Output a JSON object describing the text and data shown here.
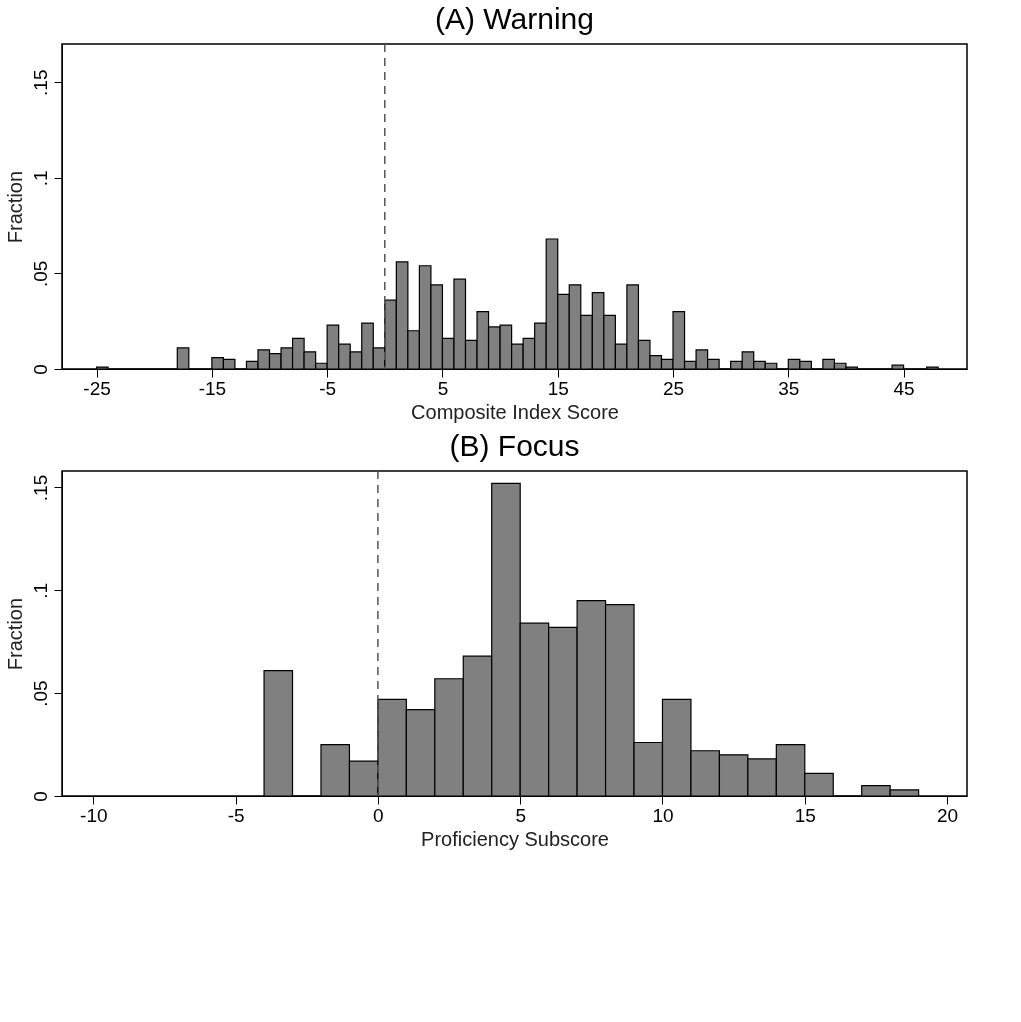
{
  "chart_data": [
    {
      "type": "histogram",
      "title": "(A) Warning",
      "xlabel": "Composite Index Score",
      "ylabel": "Fraction",
      "color": "#808080",
      "bins": [
        -25,
        -24,
        -23,
        -22,
        -21,
        -20,
        -19,
        -18,
        -17,
        -16,
        -15,
        -14,
        -13,
        -12,
        -11,
        -10,
        -9,
        -8,
        -7,
        -6,
        -5,
        -4,
        -3,
        -2,
        -1,
        0,
        1,
        2,
        3,
        4,
        5,
        6,
        7,
        8,
        9,
        10,
        11,
        12,
        13,
        14,
        15,
        16,
        17,
        18,
        19,
        20,
        21,
        22,
        23,
        24,
        25,
        26,
        27,
        28,
        29,
        30,
        31,
        32,
        33,
        34,
        35,
        36,
        37,
        38,
        39,
        40,
        41,
        42,
        43,
        44,
        45,
        46,
        47,
        48
      ],
      "values": [
        0.001,
        0,
        0,
        0,
        0,
        0,
        0,
        0.011,
        0,
        0,
        0.006,
        0.005,
        0,
        0.004,
        0.01,
        0.008,
        0.011,
        0.016,
        0.009,
        0.003,
        0.023,
        0.013,
        0.009,
        0.024,
        0.011,
        0.036,
        0.056,
        0.02,
        0.054,
        0.044,
        0.016,
        0.047,
        0.015,
        0.03,
        0.022,
        0.023,
        0.013,
        0.016,
        0.024,
        0.068,
        0.039,
        0.044,
        0.028,
        0.04,
        0.028,
        0.013,
        0.044,
        0.015,
        0.007,
        0.005,
        0.03,
        0.004,
        0.01,
        0.005,
        0,
        0.004,
        0.009,
        0.004,
        0.003,
        0,
        0.005,
        0.004,
        0,
        0.005,
        0.003,
        0.001,
        0,
        0,
        0,
        0.002,
        0,
        0,
        0.001
      ],
      "xlim": [
        -28,
        50.5
      ],
      "xticks": [
        -25,
        -15,
        -5,
        5,
        15,
        25,
        35,
        45
      ],
      "ylim": [
        0,
        0.17
      ],
      "yticks": [
        0,
        {
          "value": 0.05,
          "label": ".05"
        },
        {
          "value": 0.1,
          "label": ".1"
        },
        {
          "value": 0.15,
          "label": ".15"
        }
      ],
      "ref_lines": [
        {
          "axis": "x",
          "value": 0,
          "color": "#555555",
          "line_style": "dashed"
        }
      ],
      "grid": false
    },
    {
      "type": "histogram",
      "title": "(B) Focus",
      "xlabel": "Proficiency Subscore",
      "ylabel": "Fraction",
      "color": "#808080",
      "bins": [
        -4,
        -3,
        -2,
        -1,
        0,
        1,
        2,
        3,
        4,
        5,
        6,
        7,
        8,
        9,
        10,
        11,
        12,
        13,
        14,
        15,
        16,
        17,
        18,
        19
      ],
      "values": [
        0.061,
        0,
        0.025,
        0.017,
        0.047,
        0.042,
        0.057,
        0.068,
        0.152,
        0.084,
        0.082,
        0.095,
        0.093,
        0.026,
        0.047,
        0.022,
        0.02,
        0.018,
        0.025,
        0.011,
        0,
        0.005,
        0.003
      ],
      "xlim": [
        -11.1,
        20.7
      ],
      "xticks": [
        -10,
        -5,
        0,
        5,
        10,
        15,
        20
      ],
      "ylim": [
        0,
        0.158
      ],
      "yticks": [
        0,
        {
          "value": 0.05,
          "label": ".05"
        },
        {
          "value": 0.1,
          "label": ".1"
        },
        {
          "value": 0.15,
          "label": ".15"
        }
      ],
      "ref_lines": [
        {
          "axis": "x",
          "value": 0,
          "color": "#555555",
          "line_style": "dashed"
        }
      ],
      "grid": false
    }
  ]
}
